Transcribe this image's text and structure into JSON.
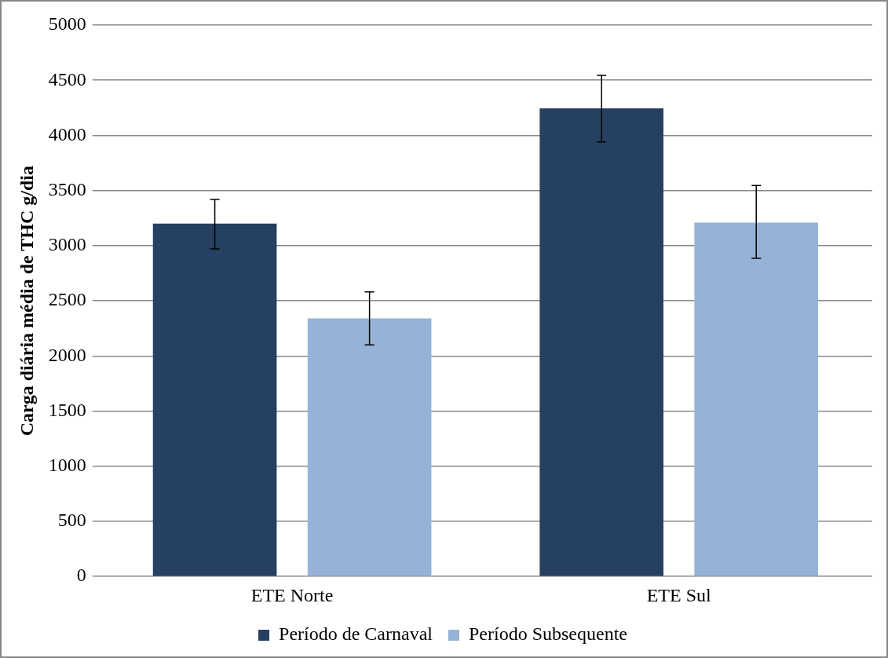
{
  "chart_data": {
    "type": "bar",
    "ylabel": "Carga diária média de THC g/dia",
    "categories": [
      "ETE Norte",
      "ETE Sul"
    ],
    "series": [
      {
        "name": "Período de Carnaval",
        "color": "#264061",
        "values": [
          3200,
          4245
        ],
        "errors": [
          [
            2970,
            3420
          ],
          [
            3940,
            4545
          ]
        ]
      },
      {
        "name": "Período Subsequente",
        "color": "#95b3d7",
        "values": [
          2340,
          3210
        ],
        "errors": [
          [
            2100,
            2580
          ],
          [
            2885,
            3545
          ]
        ]
      }
    ],
    "ylim": [
      0,
      5000
    ],
    "yticks": [
      0,
      500,
      1000,
      1500,
      2000,
      2500,
      3000,
      3500,
      4000,
      4500,
      5000
    ],
    "grid": "y",
    "legend": "bottom"
  }
}
